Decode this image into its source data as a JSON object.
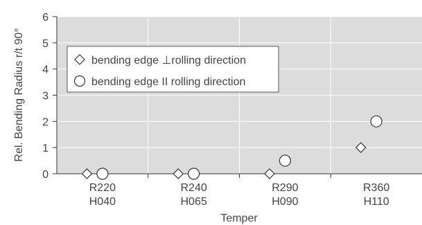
{
  "chart_data": {
    "type": "scatter",
    "xlabel": "Temper",
    "ylabel": "Rel. Bending Radius r/t 90°",
    "ylim": [
      0,
      6
    ],
    "yticks": [
      "0",
      "1",
      "2",
      "3",
      "4",
      "5",
      "6"
    ],
    "grid": true,
    "legend_position": "top-left",
    "background_color": "#dcdcdc",
    "categories": [
      {
        "line1": "R220",
        "line2": "H040"
      },
      {
        "line1": "R240",
        "line2": "H065"
      },
      {
        "line1": "R290",
        "line2": "H090"
      },
      {
        "line1": "R360",
        "line2": "H110"
      }
    ],
    "series": [
      {
        "name": "bending edge ⊥rolling direction",
        "marker": "diamond-icon",
        "values": [
          0,
          0,
          0,
          1
        ]
      },
      {
        "name": "bending edge II rolling direction",
        "marker": "circle-icon",
        "values": [
          0,
          0,
          0.5,
          2
        ]
      }
    ]
  }
}
